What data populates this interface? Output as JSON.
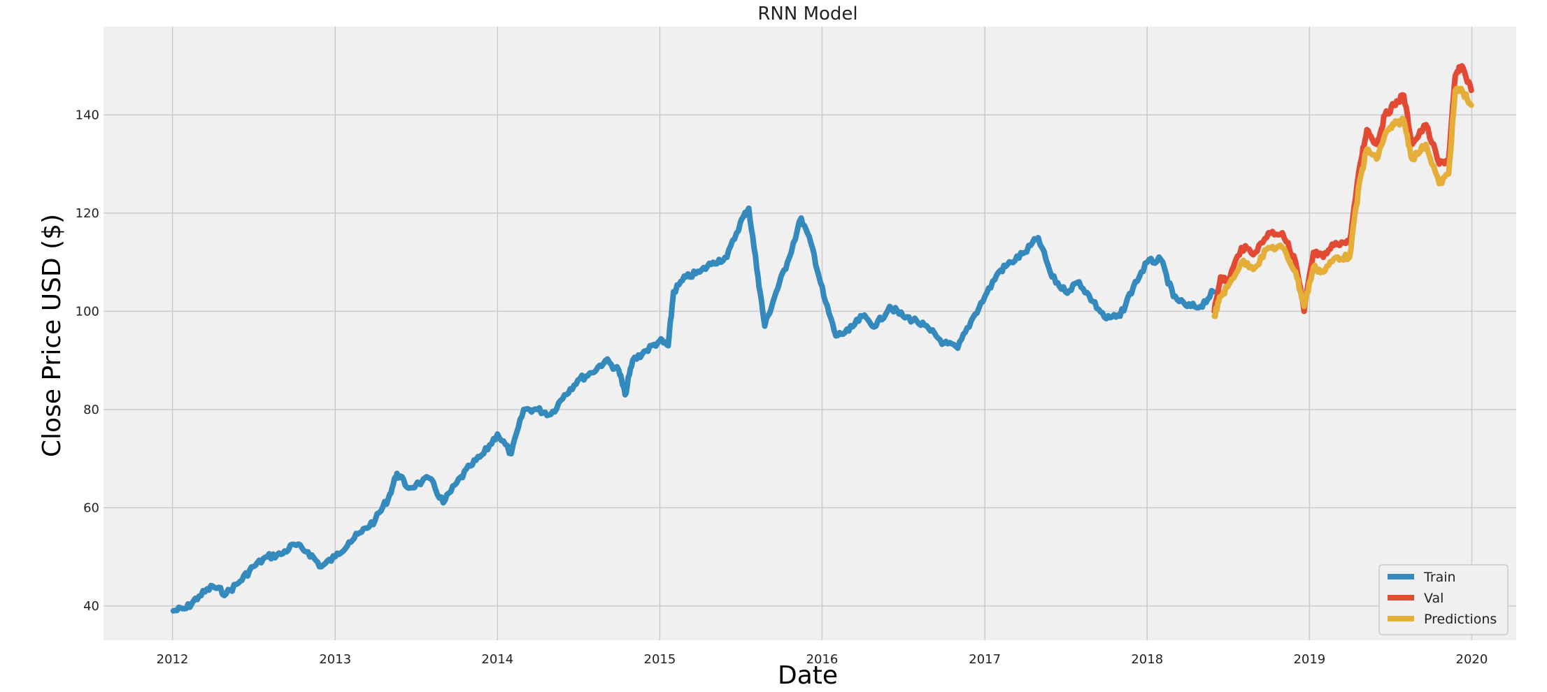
{
  "chart_data": {
    "type": "line",
    "title": "RNN Model",
    "xlabel": "Date",
    "ylabel": "Close Price USD ($)",
    "x_ticks": [
      "2012",
      "2013",
      "2014",
      "2015",
      "2016",
      "2017",
      "2018",
      "2019",
      "2020"
    ],
    "y_ticks": [
      40,
      60,
      80,
      100,
      120,
      140
    ],
    "xlim": [
      "2011-07-30",
      "2020-04-10"
    ],
    "ylim": [
      33,
      158
    ],
    "grid": true,
    "legend_position": "lower-right",
    "series": [
      {
        "name": "Train",
        "color": "#348ABD",
        "points": [
          [
            "2012-01-03",
            39
          ],
          [
            "2012-02-01",
            39.5
          ],
          [
            "2012-03-01",
            42
          ],
          [
            "2012-04-01",
            44
          ],
          [
            "2012-05-01",
            42.5
          ],
          [
            "2012-06-01",
            45
          ],
          [
            "2012-07-01",
            48
          ],
          [
            "2012-08-01",
            50
          ],
          [
            "2012-09-01",
            50.5
          ],
          [
            "2012-10-01",
            52.5
          ],
          [
            "2012-11-01",
            51
          ],
          [
            "2012-12-01",
            48
          ],
          [
            "2013-01-01",
            50
          ],
          [
            "2013-02-01",
            53
          ],
          [
            "2013-03-01",
            55
          ],
          [
            "2013-04-01",
            57.5
          ],
          [
            "2013-05-01",
            62
          ],
          [
            "2013-05-20",
            67
          ],
          [
            "2013-06-15",
            64
          ],
          [
            "2013-08-01",
            66
          ],
          [
            "2013-09-01",
            61
          ],
          [
            "2013-10-01",
            65
          ],
          [
            "2013-11-01",
            68.5
          ],
          [
            "2013-12-01",
            71
          ],
          [
            "2014-01-01",
            75
          ],
          [
            "2014-02-01",
            71
          ],
          [
            "2014-03-01",
            80
          ],
          [
            "2014-04-01",
            80
          ],
          [
            "2014-05-01",
            79
          ],
          [
            "2014-06-01",
            83
          ],
          [
            "2014-07-01",
            86
          ],
          [
            "2014-08-01",
            87.5
          ],
          [
            "2014-09-01",
            90
          ],
          [
            "2014-10-01",
            88
          ],
          [
            "2014-10-15",
            83
          ],
          [
            "2014-11-01",
            90
          ],
          [
            "2014-12-01",
            92
          ],
          [
            "2015-01-01",
            94
          ],
          [
            "2015-01-20",
            93
          ],
          [
            "2015-02-01",
            104
          ],
          [
            "2015-03-01",
            107
          ],
          [
            "2015-04-01",
            108
          ],
          [
            "2015-05-01",
            110
          ],
          [
            "2015-06-01",
            111
          ],
          [
            "2015-07-01",
            118
          ],
          [
            "2015-07-20",
            121
          ],
          [
            "2015-08-10",
            107
          ],
          [
            "2015-08-25",
            97
          ],
          [
            "2015-09-20",
            104
          ],
          [
            "2015-10-15",
            110
          ],
          [
            "2015-11-15",
            119
          ],
          [
            "2015-12-10",
            113
          ],
          [
            "2016-01-05",
            103
          ],
          [
            "2016-02-01",
            95
          ],
          [
            "2016-03-01",
            96
          ],
          [
            "2016-04-01",
            99
          ],
          [
            "2016-05-01",
            97
          ],
          [
            "2016-06-01",
            101
          ],
          [
            "2016-07-01",
            99
          ],
          [
            "2016-08-01",
            98
          ],
          [
            "2016-09-01",
            96
          ],
          [
            "2016-10-01",
            93.5
          ],
          [
            "2016-11-01",
            92.5
          ],
          [
            "2016-12-01",
            98
          ],
          [
            "2017-01-01",
            103
          ],
          [
            "2017-02-01",
            108
          ],
          [
            "2017-03-01",
            110
          ],
          [
            "2017-04-01",
            112
          ],
          [
            "2017-05-01",
            115
          ],
          [
            "2017-06-01",
            107
          ],
          [
            "2017-07-01",
            104
          ],
          [
            "2017-08-01",
            106
          ],
          [
            "2017-09-01",
            102
          ],
          [
            "2017-10-01",
            98.5
          ],
          [
            "2017-11-01",
            99
          ],
          [
            "2017-12-01",
            105
          ],
          [
            "2018-01-01",
            110
          ],
          [
            "2018-02-01",
            110.5
          ],
          [
            "2018-03-01",
            103
          ],
          [
            "2018-04-01",
            101
          ],
          [
            "2018-05-01",
            101
          ],
          [
            "2018-05-30",
            104
          ]
        ]
      },
      {
        "name": "Val",
        "color": "#E24A33",
        "points": [
          [
            "2018-06-01",
            100
          ],
          [
            "2018-06-15",
            107
          ],
          [
            "2018-07-01",
            106
          ],
          [
            "2018-08-01",
            113
          ],
          [
            "2018-09-01",
            112
          ],
          [
            "2018-10-01",
            116
          ],
          [
            "2018-11-01",
            116
          ],
          [
            "2018-12-01",
            110
          ],
          [
            "2018-12-20",
            100
          ],
          [
            "2019-01-10",
            112
          ],
          [
            "2019-02-01",
            111
          ],
          [
            "2019-03-01",
            114
          ],
          [
            "2019-04-01",
            114
          ],
          [
            "2019-04-25",
            130
          ],
          [
            "2019-05-10",
            137
          ],
          [
            "2019-06-01",
            134
          ],
          [
            "2019-06-20",
            140
          ],
          [
            "2019-07-10",
            142
          ],
          [
            "2019-08-01",
            144
          ],
          [
            "2019-08-20",
            134
          ],
          [
            "2019-09-20",
            138
          ],
          [
            "2019-10-20",
            130
          ],
          [
            "2019-11-10",
            131
          ],
          [
            "2019-11-25",
            148
          ],
          [
            "2019-12-10",
            150
          ],
          [
            "2019-12-31",
            145
          ]
        ]
      },
      {
        "name": "Predictions",
        "color": "#E5AE38",
        "points": [
          [
            "2018-06-01",
            99
          ],
          [
            "2018-06-15",
            103
          ],
          [
            "2018-07-01",
            105
          ],
          [
            "2018-08-01",
            110
          ],
          [
            "2018-09-01",
            109
          ],
          [
            "2018-10-01",
            113
          ],
          [
            "2018-11-01",
            113
          ],
          [
            "2018-12-01",
            108
          ],
          [
            "2018-12-20",
            101
          ],
          [
            "2019-01-10",
            109
          ],
          [
            "2019-02-01",
            108
          ],
          [
            "2019-03-01",
            111
          ],
          [
            "2019-04-01",
            111
          ],
          [
            "2019-04-25",
            127
          ],
          [
            "2019-05-10",
            133
          ],
          [
            "2019-06-01",
            131
          ],
          [
            "2019-06-20",
            136
          ],
          [
            "2019-07-10",
            138
          ],
          [
            "2019-08-01",
            139
          ],
          [
            "2019-08-20",
            131
          ],
          [
            "2019-09-20",
            134
          ],
          [
            "2019-10-20",
            126
          ],
          [
            "2019-11-10",
            128
          ],
          [
            "2019-11-25",
            145
          ],
          [
            "2019-12-10",
            145
          ],
          [
            "2019-12-31",
            142
          ]
        ]
      }
    ]
  }
}
